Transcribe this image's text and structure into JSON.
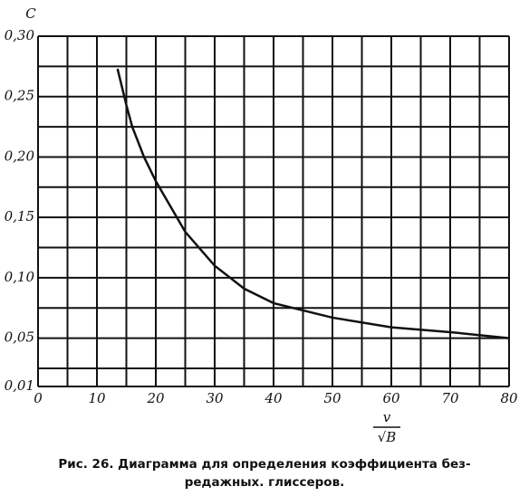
{
  "chart_data": {
    "type": "line",
    "y_label": "C",
    "x_label": {
      "numerator": "v",
      "denominator": "√B"
    },
    "caption": [
      "Рис. 26. Диаграмма для определения коэффициента без-",
      "редажных. глиссеров."
    ],
    "xlim": [
      0,
      80
    ],
    "xticks": [
      0,
      10,
      20,
      30,
      40,
      50,
      60,
      70,
      80
    ],
    "x_minor_ticks": [
      5,
      15,
      25,
      35,
      45,
      55,
      65,
      75
    ],
    "ylim": [
      0.01,
      0.3
    ],
    "yticks": [
      {
        "value": 0.01,
        "label": "0,01"
      },
      {
        "value": 0.05,
        "label": "0,05"
      },
      {
        "value": 0.1,
        "label": "0,10"
      },
      {
        "value": 0.15,
        "label": "0,15"
      },
      {
        "value": 0.2,
        "label": "0,20"
      },
      {
        "value": 0.25,
        "label": "0,25"
      },
      {
        "value": 0.3,
        "label": "0,30"
      }
    ],
    "y_minor_ticks": [
      0.025,
      0.075,
      0.125,
      0.175,
      0.225,
      0.275
    ],
    "grid": true,
    "color": "#111111",
    "x": [
      13.5,
      15,
      16,
      18,
      20,
      25,
      30,
      35,
      40,
      50,
      60,
      70,
      80
    ],
    "values": [
      0.273,
      0.243,
      0.225,
      0.2,
      0.18,
      0.138,
      0.11,
      0.091,
      0.079,
      0.067,
      0.059,
      0.055,
      0.05
    ]
  }
}
